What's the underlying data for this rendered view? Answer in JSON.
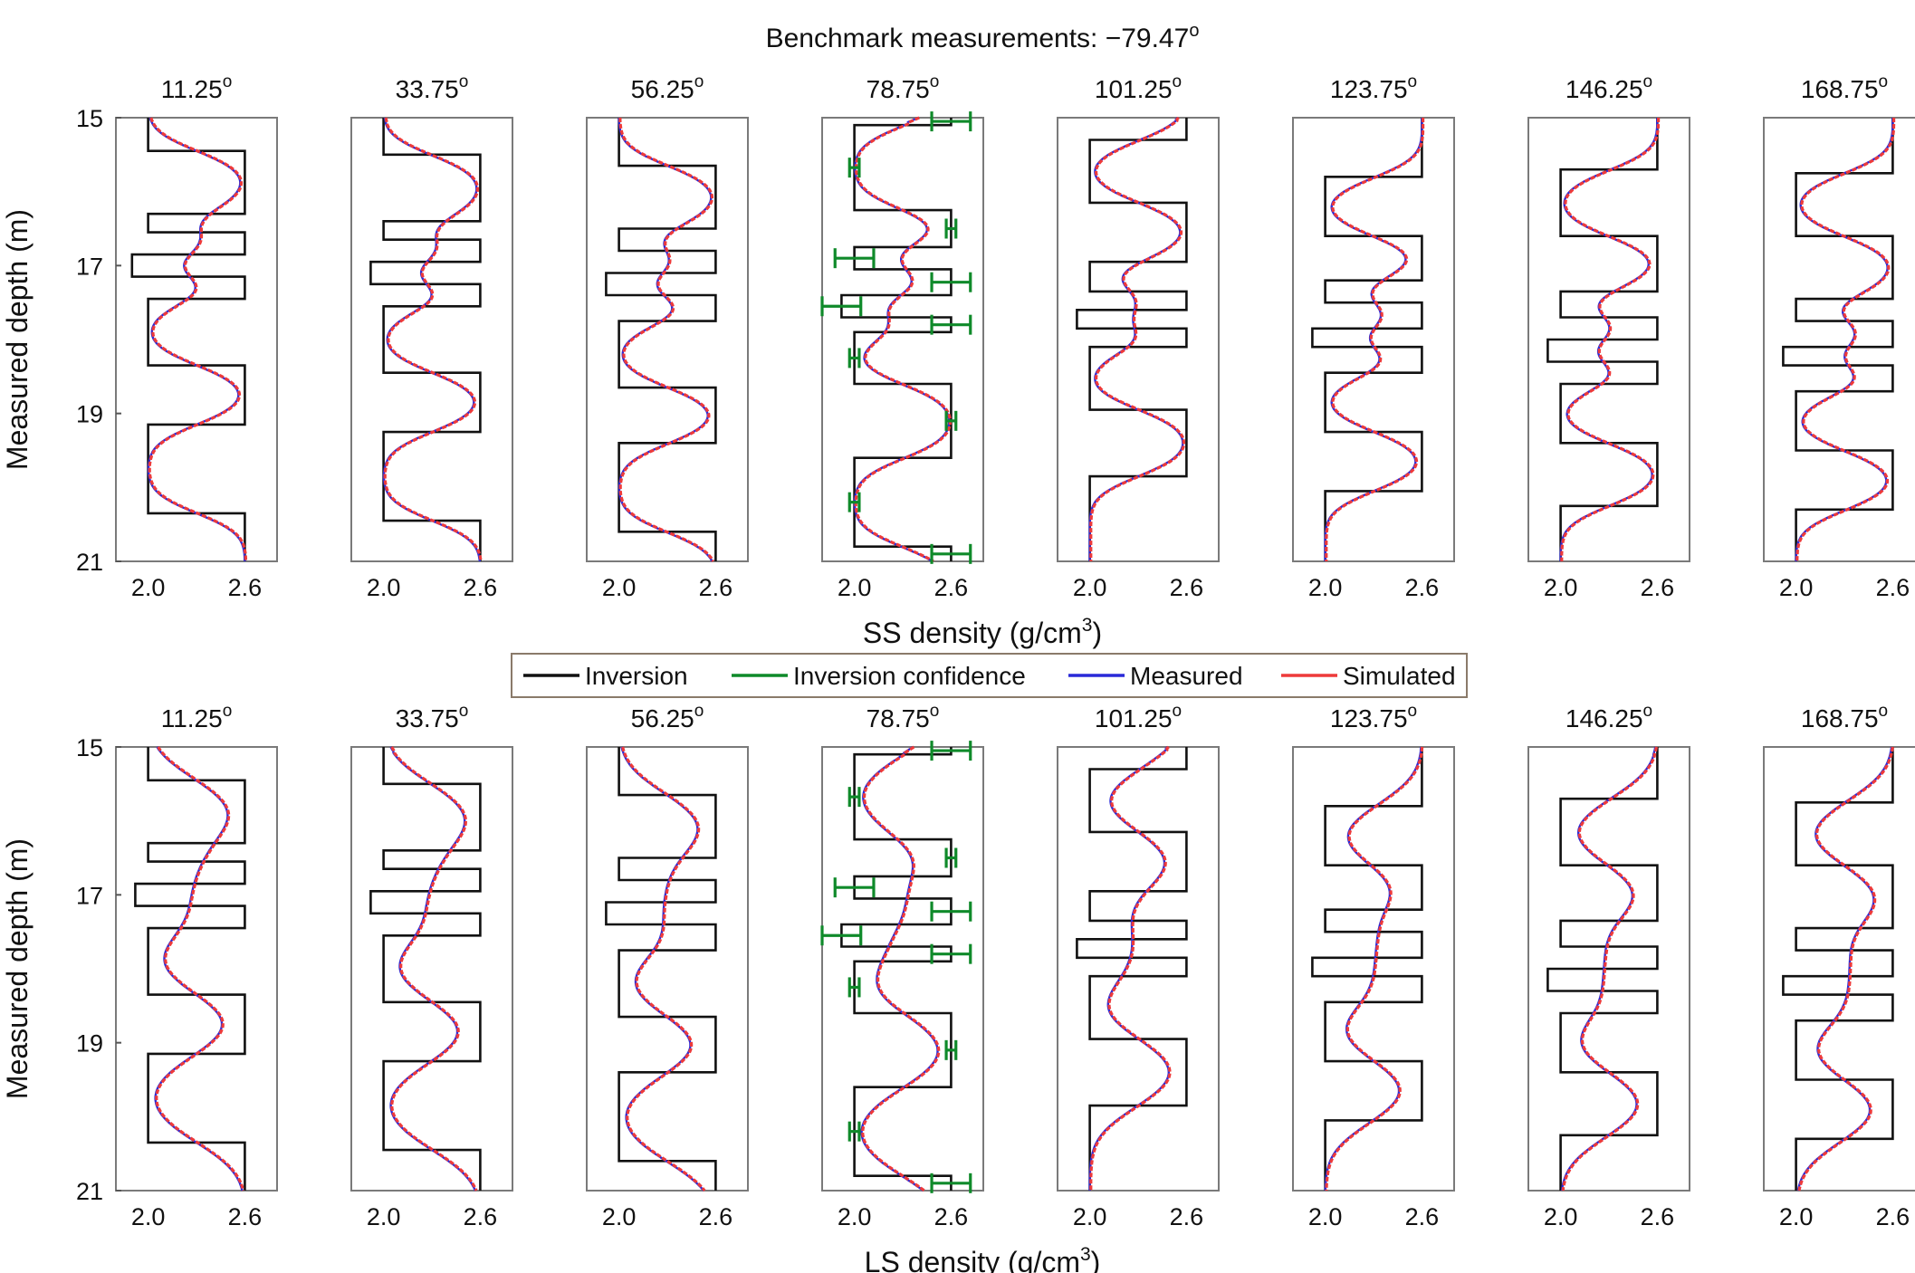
{
  "chart_data": {
    "type": "line",
    "title": "Benchmark measurements: −79.47",
    "title_degree": "o",
    "ylabel": "Measured depth (m)",
    "ylim": [
      15,
      21
    ],
    "yticks": [
      "15",
      "17",
      "19",
      "21"
    ],
    "xlim": [
      1.8,
      2.8
    ],
    "xticks": [
      "2.0",
      "2.6"
    ],
    "legend": {
      "position": "center, between the two rows",
      "entries": [
        "Inversion",
        "Inversion confidence",
        "Measured",
        "Simulated"
      ],
      "colors": [
        "#111111",
        "#0f8a2a",
        "#2a2ad8",
        "#ee3a3a"
      ]
    },
    "confidence_panel_index": 3,
    "rows": [
      {
        "name": "SS",
        "xlabel_prefix": "SS  density (g/cm",
        "xlabel_sup": "3",
        "xlabel_suffix": ")",
        "panels": [
          {
            "angle": "11.25",
            "steps": [
              [
                15.0,
                2.0
              ],
              [
                15.45,
                2.6
              ],
              [
                16.3,
                2.0
              ],
              [
                16.55,
                2.6
              ],
              [
                16.85,
                1.9
              ],
              [
                17.15,
                2.6
              ],
              [
                17.45,
                2.0
              ],
              [
                18.35,
                2.6
              ],
              [
                19.15,
                2.0
              ],
              [
                20.35,
                2.6
              ],
              [
                21.0,
                2.6
              ]
            ]
          },
          {
            "angle": "33.75",
            "steps": [
              [
                15.0,
                2.0
              ],
              [
                15.5,
                2.6
              ],
              [
                16.4,
                2.0
              ],
              [
                16.65,
                2.6
              ],
              [
                16.95,
                1.92
              ],
              [
                17.25,
                2.6
              ],
              [
                17.55,
                2.0
              ],
              [
                18.45,
                2.6
              ],
              [
                19.25,
                2.0
              ],
              [
                20.45,
                2.6
              ],
              [
                21.0,
                2.6
              ]
            ]
          },
          {
            "angle": "56.25",
            "steps": [
              [
                15.0,
                2.0
              ],
              [
                15.65,
                2.6
              ],
              [
                16.5,
                2.0
              ],
              [
                16.8,
                2.6
              ],
              [
                17.1,
                1.92
              ],
              [
                17.4,
                2.6
              ],
              [
                17.75,
                2.0
              ],
              [
                18.65,
                2.6
              ],
              [
                19.4,
                2.0
              ],
              [
                20.6,
                2.6
              ],
              [
                21.0,
                2.6
              ]
            ]
          },
          {
            "angle": "78.75",
            "steps": [
              [
                15.0,
                2.6
              ],
              [
                15.1,
                2.0
              ],
              [
                16.25,
                2.6
              ],
              [
                16.75,
                2.0
              ],
              [
                17.05,
                2.6
              ],
              [
                17.4,
                1.92
              ],
              [
                17.7,
                2.6
              ],
              [
                17.9,
                2.0
              ],
              [
                18.6,
                2.6
              ],
              [
                19.6,
                2.0
              ],
              [
                20.8,
                2.6
              ],
              [
                21.0,
                2.6
              ]
            ]
          },
          {
            "angle": "101.25",
            "steps": [
              [
                15.0,
                2.6
              ],
              [
                15.3,
                2.0
              ],
              [
                16.15,
                2.6
              ],
              [
                16.95,
                2.0
              ],
              [
                17.35,
                2.6
              ],
              [
                17.6,
                1.92
              ],
              [
                17.85,
                2.6
              ],
              [
                18.1,
                2.0
              ],
              [
                18.95,
                2.6
              ],
              [
                19.85,
                2.0
              ],
              [
                21.0,
                2.0
              ]
            ]
          },
          {
            "angle": "123.75",
            "steps": [
              [
                15.0,
                2.6
              ],
              [
                15.8,
                2.0
              ],
              [
                16.6,
                2.6
              ],
              [
                17.2,
                2.0
              ],
              [
                17.5,
                2.6
              ],
              [
                17.85,
                1.92
              ],
              [
                18.1,
                2.6
              ],
              [
                18.45,
                2.0
              ],
              [
                19.25,
                2.6
              ],
              [
                20.05,
                2.0
              ],
              [
                21.0,
                2.0
              ]
            ]
          },
          {
            "angle": "146.25",
            "steps": [
              [
                15.0,
                2.6
              ],
              [
                15.7,
                2.0
              ],
              [
                16.6,
                2.6
              ],
              [
                17.35,
                2.0
              ],
              [
                17.7,
                2.6
              ],
              [
                18.0,
                1.92
              ],
              [
                18.3,
                2.6
              ],
              [
                18.6,
                2.0
              ],
              [
                19.4,
                2.6
              ],
              [
                20.25,
                2.0
              ],
              [
                21.0,
                2.0
              ]
            ]
          },
          {
            "angle": "168.75",
            "steps": [
              [
                15.0,
                2.6
              ],
              [
                15.75,
                2.0
              ],
              [
                16.6,
                2.6
              ],
              [
                17.45,
                2.0
              ],
              [
                17.75,
                2.6
              ],
              [
                18.1,
                1.92
              ],
              [
                18.35,
                2.6
              ],
              [
                18.7,
                2.0
              ],
              [
                19.5,
                2.6
              ],
              [
                20.3,
                2.0
              ],
              [
                21.0,
                2.0
              ]
            ]
          }
        ]
      },
      {
        "name": "LS",
        "xlabel_prefix": "LS  density (g/cm",
        "xlabel_sup": "3",
        "xlabel_suffix": ")",
        "panels": [
          {
            "angle": "11.25",
            "steps": [
              [
                15.0,
                2.0
              ],
              [
                15.45,
                2.6
              ],
              [
                16.3,
                2.0
              ],
              [
                16.55,
                2.6
              ],
              [
                16.85,
                1.92
              ],
              [
                17.15,
                2.6
              ],
              [
                17.45,
                2.0
              ],
              [
                18.35,
                2.6
              ],
              [
                19.15,
                2.0
              ],
              [
                20.35,
                2.6
              ],
              [
                21.0,
                2.6
              ]
            ]
          },
          {
            "angle": "33.75",
            "steps": [
              [
                15.0,
                2.0
              ],
              [
                15.5,
                2.6
              ],
              [
                16.4,
                2.0
              ],
              [
                16.65,
                2.6
              ],
              [
                16.95,
                1.92
              ],
              [
                17.25,
                2.6
              ],
              [
                17.55,
                2.0
              ],
              [
                18.45,
                2.6
              ],
              [
                19.25,
                2.0
              ],
              [
                20.45,
                2.6
              ],
              [
                21.0,
                2.6
              ]
            ]
          },
          {
            "angle": "56.25",
            "steps": [
              [
                15.0,
                2.0
              ],
              [
                15.65,
                2.6
              ],
              [
                16.5,
                2.0
              ],
              [
                16.8,
                2.6
              ],
              [
                17.1,
                1.92
              ],
              [
                17.4,
                2.6
              ],
              [
                17.75,
                2.0
              ],
              [
                18.65,
                2.6
              ],
              [
                19.4,
                2.0
              ],
              [
                20.6,
                2.6
              ],
              [
                21.0,
                2.6
              ]
            ]
          },
          {
            "angle": "78.75",
            "steps": [
              [
                15.0,
                2.6
              ],
              [
                15.1,
                2.0
              ],
              [
                16.25,
                2.6
              ],
              [
                16.75,
                2.0
              ],
              [
                17.05,
                2.6
              ],
              [
                17.4,
                1.92
              ],
              [
                17.7,
                2.6
              ],
              [
                17.9,
                2.0
              ],
              [
                18.6,
                2.6
              ],
              [
                19.6,
                2.0
              ],
              [
                20.8,
                2.6
              ],
              [
                21.0,
                2.6
              ]
            ]
          },
          {
            "angle": "101.25",
            "steps": [
              [
                15.0,
                2.6
              ],
              [
                15.3,
                2.0
              ],
              [
                16.15,
                2.6
              ],
              [
                16.95,
                2.0
              ],
              [
                17.35,
                2.6
              ],
              [
                17.6,
                1.92
              ],
              [
                17.85,
                2.6
              ],
              [
                18.1,
                2.0
              ],
              [
                18.95,
                2.6
              ],
              [
                19.85,
                2.0
              ],
              [
                21.0,
                2.0
              ]
            ]
          },
          {
            "angle": "123.75",
            "steps": [
              [
                15.0,
                2.6
              ],
              [
                15.8,
                2.0
              ],
              [
                16.6,
                2.6
              ],
              [
                17.2,
                2.0
              ],
              [
                17.5,
                2.6
              ],
              [
                17.85,
                1.92
              ],
              [
                18.1,
                2.6
              ],
              [
                18.45,
                2.0
              ],
              [
                19.25,
                2.6
              ],
              [
                20.05,
                2.0
              ],
              [
                21.0,
                2.0
              ]
            ]
          },
          {
            "angle": "146.25",
            "steps": [
              [
                15.0,
                2.6
              ],
              [
                15.7,
                2.0
              ],
              [
                16.6,
                2.6
              ],
              [
                17.35,
                2.0
              ],
              [
                17.7,
                2.6
              ],
              [
                18.0,
                1.92
              ],
              [
                18.3,
                2.6
              ],
              [
                18.6,
                2.0
              ],
              [
                19.4,
                2.6
              ],
              [
                20.25,
                2.0
              ],
              [
                21.0,
                2.0
              ]
            ]
          },
          {
            "angle": "168.75",
            "steps": [
              [
                15.0,
                2.6
              ],
              [
                15.75,
                2.0
              ],
              [
                16.6,
                2.6
              ],
              [
                17.45,
                2.0
              ],
              [
                17.75,
                2.6
              ],
              [
                18.1,
                1.92
              ],
              [
                18.35,
                2.6
              ],
              [
                18.7,
                2.0
              ],
              [
                19.5,
                2.6
              ],
              [
                20.3,
                2.0
              ],
              [
                21.0,
                2.0
              ]
            ]
          }
        ]
      }
    ]
  }
}
